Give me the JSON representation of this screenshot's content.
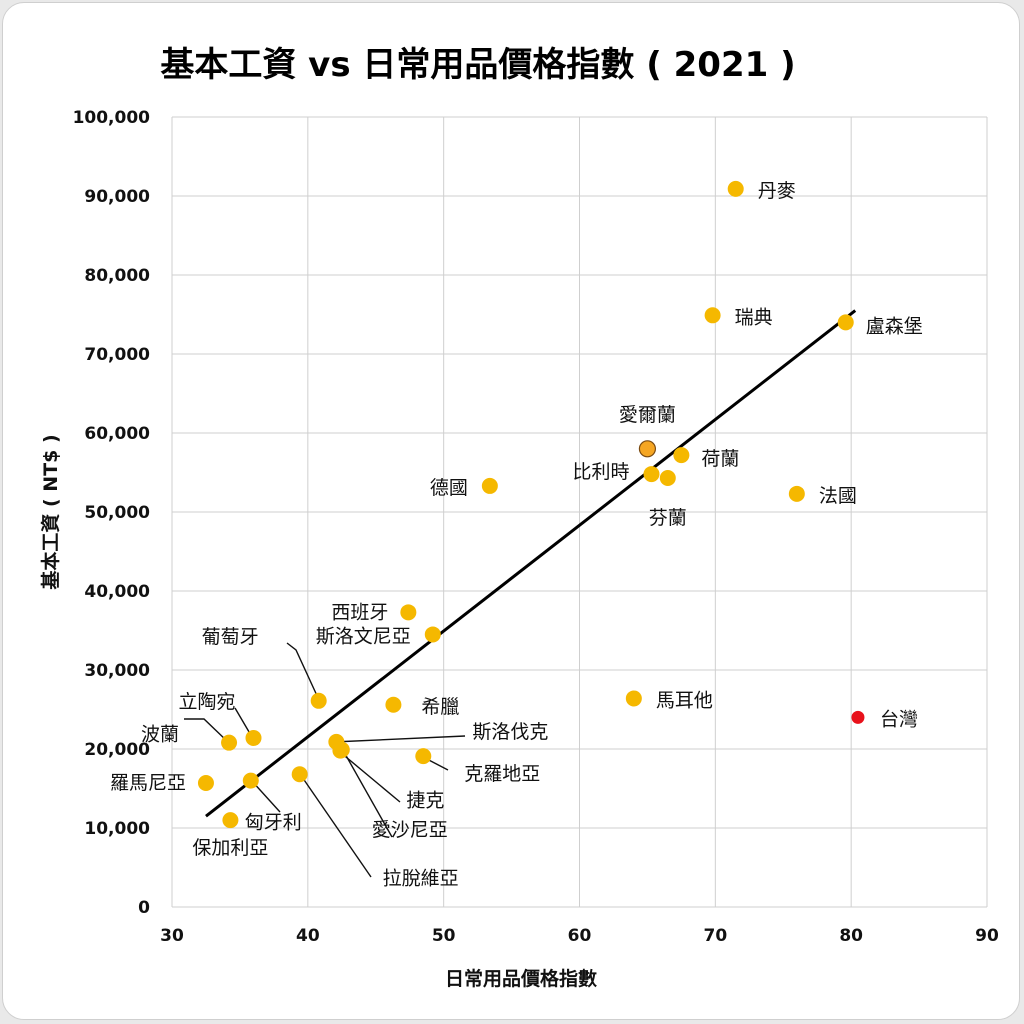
{
  "chart_data": {
    "type": "scatter",
    "title": "基本工資 vs 日常用品價格指數 ( 2021 )",
    "xlabel": "日常用品價格指數",
    "ylabel": "基本工資 ( NT$ )",
    "xlim": [
      30,
      90
    ],
    "ylim": [
      0,
      100000
    ],
    "x_ticks": [
      30,
      40,
      50,
      60,
      70,
      80,
      90
    ],
    "x_tick_labels": [
      "30",
      "40",
      "50",
      "60",
      "70",
      "80",
      "90"
    ],
    "y_ticks": [
      0,
      10000,
      20000,
      30000,
      40000,
      50000,
      60000,
      70000,
      80000,
      90000,
      100000
    ],
    "y_tick_labels": [
      "0",
      "10,000",
      "20,000",
      "30,000",
      "40,000",
      "50,000",
      "60,000",
      "70,000",
      "80,000",
      "90,000",
      "100,000"
    ],
    "grid": true,
    "colors": {
      "default": "#f5b800",
      "highlight_taiwan": "#e8111b",
      "highlight_ireland": "#f5a623",
      "trendline": "#000000"
    },
    "trendline": {
      "x": [
        32.5,
        80.3
      ],
      "y": [
        11500,
        75500
      ]
    },
    "points": [
      {
        "name": "丹麥",
        "x": 71.5,
        "y": 90900
      },
      {
        "name": "瑞典",
        "x": 69.8,
        "y": 74900
      },
      {
        "name": "盧森堡",
        "x": 79.6,
        "y": 74000
      },
      {
        "name": "愛爾蘭",
        "x": 65.0,
        "y": 58000
      },
      {
        "name": "荷蘭",
        "x": 67.5,
        "y": 57200
      },
      {
        "name": "比利時",
        "x": 65.3,
        "y": 54800
      },
      {
        "name": "芬蘭",
        "x": 66.5,
        "y": 54300
      },
      {
        "name": "德國",
        "x": 53.4,
        "y": 53300
      },
      {
        "name": "法國",
        "x": 76.0,
        "y": 52300
      },
      {
        "name": "西班牙",
        "x": 47.4,
        "y": 37300
      },
      {
        "name": "斯洛文尼亞",
        "x": 49.2,
        "y": 34500
      },
      {
        "name": "葡萄牙",
        "x": 40.8,
        "y": 26100
      },
      {
        "name": "希臘",
        "x": 46.3,
        "y": 25600
      },
      {
        "name": "馬耳他",
        "x": 64.0,
        "y": 26400
      },
      {
        "name": "台灣",
        "x": 80.5,
        "y": 24000
      },
      {
        "name": "立陶宛",
        "x": 36.0,
        "y": 21400
      },
      {
        "name": "波蘭",
        "x": 34.2,
        "y": 20800
      },
      {
        "name": "斯洛伐克",
        "x": 42.1,
        "y": 20900
      },
      {
        "name": "捷克",
        "x": 42.4,
        "y": 19800
      },
      {
        "name": "克羅地亞",
        "x": 48.5,
        "y": 19100
      },
      {
        "name": "羅馬尼亞",
        "x": 32.5,
        "y": 15700
      },
      {
        "name": "匈牙利",
        "x": 35.8,
        "y": 16000
      },
      {
        "name": "拉脫維亞",
        "x": 39.4,
        "y": 16800
      },
      {
        "name": "愛沙尼亞",
        "x": 42.5,
        "y": 19900
      },
      {
        "name": "保加利亞",
        "x": 34.3,
        "y": 11000
      }
    ]
  }
}
